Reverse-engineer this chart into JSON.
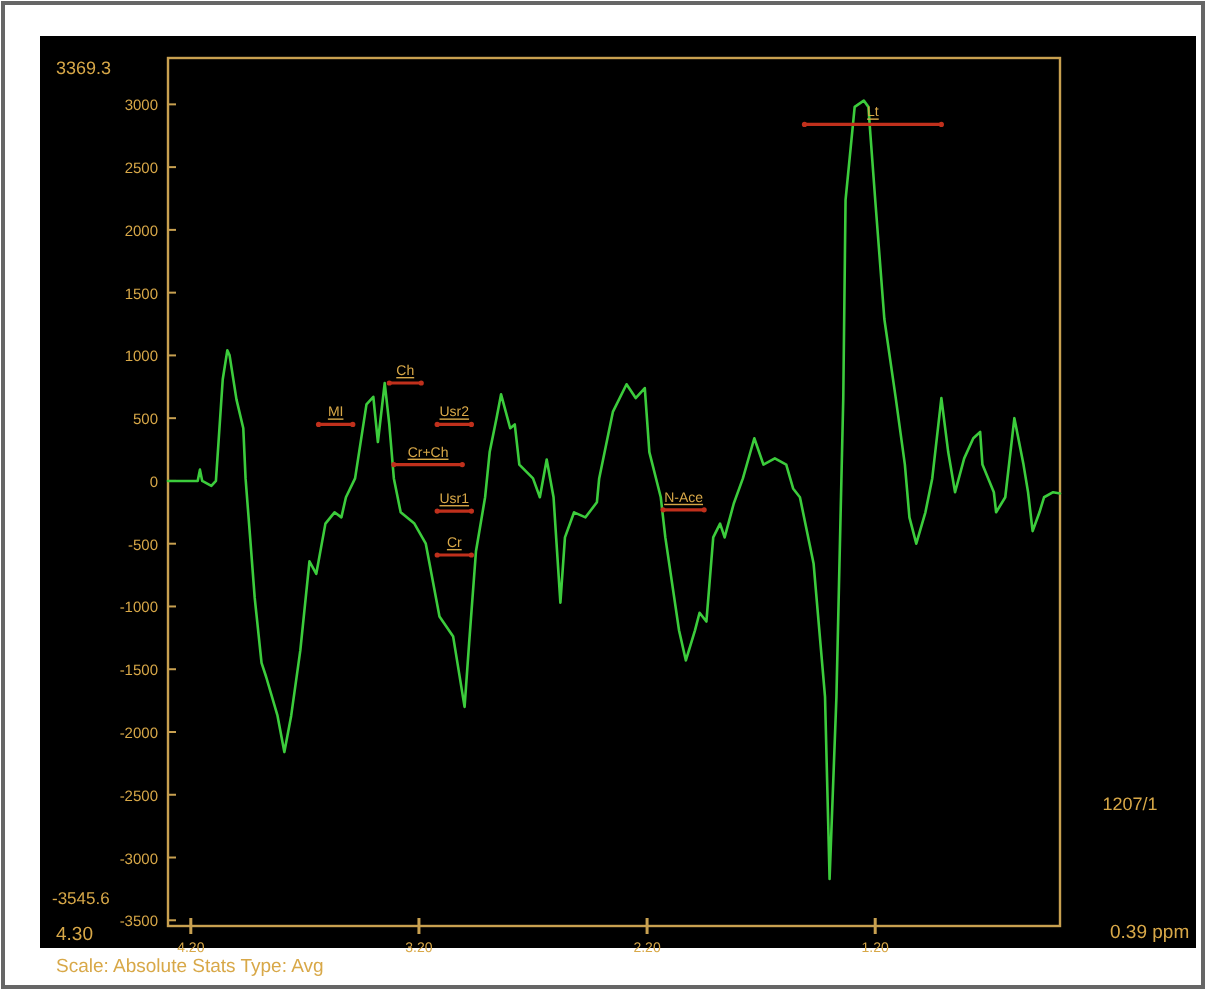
{
  "chart_data": {
    "type": "line",
    "xlim": [
      4.3,
      0.39
    ],
    "xticks": [
      {
        "value": 4.2,
        "label": "4.20"
      },
      {
        "value": 3.2,
        "label": "3.20"
      },
      {
        "value": 2.2,
        "label": "2.20"
      },
      {
        "value": 1.2,
        "label": "1.20"
      }
    ],
    "ylim": [
      -3545.6,
      3369.3
    ],
    "yticks": [
      -3500,
      -3000,
      -2500,
      -2000,
      -1500,
      -1000,
      -500,
      0,
      500,
      1000,
      1500,
      2000,
      2500,
      3000
    ],
    "series": [
      {
        "color": "#3ccc3c",
        "x": [
          4.3,
          4.17,
          4.16,
          4.15,
          4.11,
          4.09,
          4.06,
          4.04,
          4.03,
          4.0,
          3.97,
          3.96,
          3.94,
          3.92,
          3.89,
          3.87,
          3.82,
          3.79,
          3.76,
          3.72,
          3.68,
          3.65,
          3.61,
          3.57,
          3.54,
          3.52,
          3.48,
          3.43,
          3.4,
          3.38,
          3.35,
          3.33,
          3.31,
          3.28,
          3.22,
          3.17,
          3.11,
          3.05,
          3.0,
          2.98,
          2.95,
          2.91,
          2.89,
          2.86,
          2.84,
          2.8,
          2.78,
          2.76,
          2.7,
          2.67,
          2.64,
          2.61,
          2.58,
          2.56,
          2.52,
          2.47,
          2.42,
          2.41,
          2.35,
          2.29,
          2.25,
          2.21,
          2.19,
          2.14,
          2.12,
          2.06,
          2.03,
          1.99,
          1.97,
          1.94,
          1.91,
          1.88,
          1.86,
          1.82,
          1.78,
          1.73,
          1.69,
          1.64,
          1.59,
          1.56,
          1.53,
          1.47,
          1.42,
          1.4,
          1.37,
          1.35,
          1.34,
          1.33,
          1.29,
          1.25,
          1.23,
          1.2,
          1.16,
          1.11,
          1.07,
          1.05,
          1.02,
          0.98,
          0.95,
          0.91,
          0.88,
          0.85,
          0.81,
          0.77,
          0.74,
          0.73,
          0.68,
          0.67,
          0.63,
          0.59,
          0.55,
          0.53,
          0.51,
          0.48,
          0.46,
          0.42,
          0.39
        ],
        "values": [
          0,
          0,
          90,
          0,
          -40,
          0,
          810,
          1040,
          1000,
          650,
          420,
          20,
          -450,
          -930,
          -1450,
          -1560,
          -1870,
          -2160,
          -1870,
          -1350,
          -640,
          -740,
          -340,
          -250,
          -290,
          -130,
          20,
          610,
          670,
          310,
          780,
          450,
          20,
          -250,
          -340,
          -500,
          -1080,
          -1240,
          -1800,
          -1290,
          -560,
          -130,
          230,
          500,
          690,
          420,
          450,
          130,
          20,
          -130,
          170,
          -130,
          -970,
          -450,
          -250,
          -290,
          -170,
          20,
          550,
          770,
          660,
          740,
          230,
          -130,
          -450,
          -1190,
          -1430,
          -1190,
          -1050,
          -1120,
          -450,
          -340,
          -450,
          -180,
          20,
          340,
          130,
          180,
          130,
          -60,
          -130,
          -660,
          -1720,
          -3170,
          -1720,
          -130,
          660,
          2240,
          2980,
          3030,
          2980,
          2240,
          1290,
          660,
          130,
          -290,
          -500,
          -250,
          20,
          660,
          230,
          -90,
          180,
          340,
          390,
          130,
          -90,
          -250,
          -130,
          500,
          130,
          -90,
          -400,
          -250,
          -130,
          -90,
          -100
        ]
      },
      {
        "color": "#c0301c",
        "x": [
          3.64,
          3.49
        ],
        "values": [
          450,
          450
        ]
      },
      {
        "color": "#c0301c",
        "x": [
          3.33,
          3.19
        ],
        "values": [
          780,
          780
        ]
      },
      {
        "color": "#c0301c",
        "x": [
          3.12,
          2.97
        ],
        "values": [
          450,
          450
        ]
      },
      {
        "color": "#c0301c",
        "x": [
          3.31,
          3.01
        ],
        "values": [
          130,
          130
        ]
      },
      {
        "color": "#c0301c",
        "x": [
          3.12,
          2.97
        ],
        "values": [
          -240,
          -240
        ]
      },
      {
        "color": "#c0301c",
        "x": [
          3.12,
          2.97
        ],
        "values": [
          -590,
          -590
        ]
      },
      {
        "color": "#c0301c",
        "x": [
          2.13,
          1.95
        ],
        "values": [
          -230,
          -230
        ]
      },
      {
        "color": "#c0301c",
        "x": [
          1.51,
          0.91
        ],
        "values": [
          2840,
          2840
        ]
      }
    ],
    "annotations": [
      {
        "text": "MI",
        "x": 3.565,
        "y": 450
      },
      {
        "text": "Ch",
        "x": 3.26,
        "y": 780
      },
      {
        "text": "Usr2",
        "x": 3.045,
        "y": 450
      },
      {
        "text": "Cr+Ch",
        "x": 3.16,
        "y": 130
      },
      {
        "text": "Usr1",
        "x": 3.045,
        "y": -240
      },
      {
        "text": "Cr",
        "x": 3.045,
        "y": -590
      },
      {
        "text": "N-Ace",
        "x": 2.04,
        "y": -230
      },
      {
        "text": "Lt",
        "x": 1.21,
        "y": 2840
      },
      "3369.3",
      "-3545.6",
      "4.30",
      "0.39 ppm",
      "1207/1",
      "Scale: Absolute Stats Type: Avg"
    ]
  }
}
